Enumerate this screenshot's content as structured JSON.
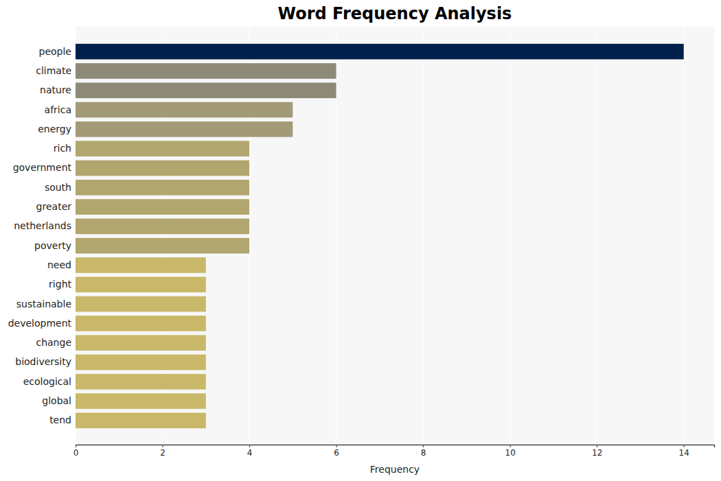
{
  "chart_data": {
    "type": "bar",
    "orientation": "horizontal",
    "title": "Word Frequency Analysis",
    "x_label": "Frequency",
    "categories": [
      "people",
      "climate",
      "nature",
      "africa",
      "energy",
      "rich",
      "government",
      "south",
      "greater",
      "netherlands",
      "poverty",
      "need",
      "right",
      "sustainable",
      "development",
      "change",
      "biodiversity",
      "ecological",
      "global",
      "tend"
    ],
    "values": [
      14,
      6,
      6,
      5,
      5,
      4,
      4,
      4,
      4,
      4,
      4,
      3,
      3,
      3,
      3,
      3,
      3,
      3,
      3,
      3
    ],
    "colors": [
      "#00204c",
      "#8e8a78",
      "#8e8a78",
      "#a39b78",
      "#a39b78",
      "#b1a66d",
      "#b1a66d",
      "#b1a66d",
      "#b1a66d",
      "#b1a66d",
      "#b1a66d",
      "#c9b869",
      "#c9b869",
      "#c9b869",
      "#c9b869",
      "#c9b869",
      "#c9b869",
      "#c9b869",
      "#c9b869",
      "#c9b869"
    ],
    "xlim": [
      0,
      14.7
    ],
    "xticks": [
      0,
      2,
      4,
      6,
      8,
      10,
      12,
      14
    ],
    "grid": true
  }
}
